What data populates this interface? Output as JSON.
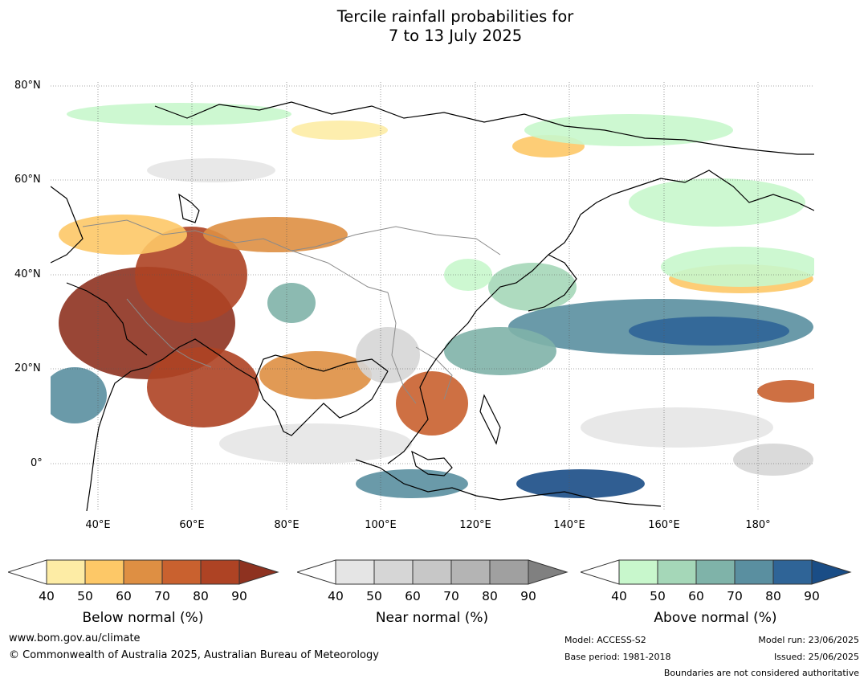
{
  "title": {
    "line1": "Tercile rainfall probabilities for",
    "line2": "7 to 13 July 2025"
  },
  "map": {
    "lat_labels": [
      "80°N",
      "60°N",
      "40°N",
      "20°N",
      "0°"
    ],
    "lon_labels": [
      "40°E",
      "60°E",
      "80°E",
      "100°E",
      "120°E",
      "140°E",
      "160°E",
      "180°"
    ],
    "palette": {
      "below": [
        "#fdeca5",
        "#fdc867",
        "#de8f43",
        "#c9612f",
        "#ae4324",
        "#8e3220"
      ],
      "near": [
        "#e5e5e5",
        "#d6d6d6",
        "#c7c7c7",
        "#b4b4b4",
        "#a0a0a0",
        "#808080"
      ],
      "above": [
        "#c8f7cc",
        "#a5d7b8",
        "#7fb3a9",
        "#5a8fa0",
        "#2f6497",
        "#1a4d86"
      ],
      "coastline": "#000000",
      "boundary": "#8a8a8a"
    }
  },
  "colorbars": [
    {
      "name": "below",
      "title": "Below normal (%)",
      "ticks": [
        "40",
        "50",
        "60",
        "70",
        "80",
        "90"
      ],
      "colors": [
        "#fdeca5",
        "#fdc867",
        "#de8f43",
        "#c9612f",
        "#ae4324",
        "#8e3220"
      ]
    },
    {
      "name": "near",
      "title": "Near normal (%)",
      "ticks": [
        "40",
        "50",
        "60",
        "70",
        "80",
        "90"
      ],
      "colors": [
        "#e5e5e5",
        "#d6d6d6",
        "#c7c7c7",
        "#b4b4b4",
        "#a0a0a0",
        "#808080"
      ]
    },
    {
      "name": "above",
      "title": "Above normal (%)",
      "ticks": [
        "40",
        "50",
        "60",
        "70",
        "80",
        "90"
      ],
      "colors": [
        "#c8f7cc",
        "#a5d7b8",
        "#7fb3a9",
        "#5a8fa0",
        "#2f6497",
        "#1a4d86"
      ]
    }
  ],
  "footer": {
    "website": "www.bom.gov.au/climate",
    "copyright": "© Commonwealth of Australia 2025, Australian Bureau of Meteorology",
    "model": "Model: ACCESS-S2",
    "base_period": "Base period: 1981-2018",
    "model_run": "Model run: 23/06/2025",
    "issued": "Issued: 25/06/2025",
    "disclaimer": "Boundaries are not considered authoritative"
  }
}
